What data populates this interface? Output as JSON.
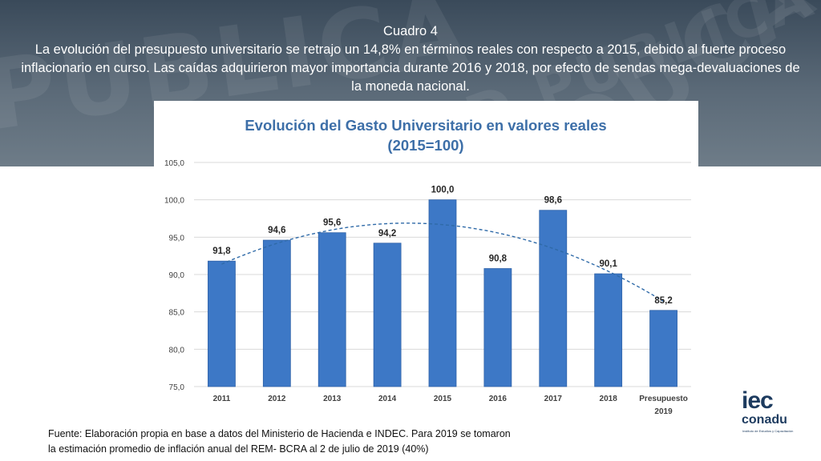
{
  "header": {
    "title": "Cuadro 4",
    "body": "La evolución del presupuesto universitario se retrajo un 14,8% en términos reales con respecto a 2015, debido al fuerte proceso inflacionario en curso. Las caídas adquirieron mayor importancia durante 2016 y 2018, por efecto de sendas mega-devaluaciones de la moneda nacional."
  },
  "banner_watermark": [
    "PUBLICA",
    "EDUCA",
    "UNIVERSIDAD PUBLICA"
  ],
  "chart_data": {
    "type": "bar",
    "title_line1": "Evolución del Gasto Universitario en valores reales",
    "title_line2": "(2015=100)",
    "categories": [
      "2011",
      "2012",
      "2013",
      "2014",
      "2015",
      "2016",
      "2017",
      "2018",
      "Presupuesto 2019"
    ],
    "category_labels": [
      [
        "2011"
      ],
      [
        "2012"
      ],
      [
        "2013"
      ],
      [
        "2014"
      ],
      [
        "2015"
      ],
      [
        "2016"
      ],
      [
        "2017"
      ],
      [
        "2018"
      ],
      [
        "Presupuesto",
        "2019"
      ]
    ],
    "values": [
      91.8,
      94.6,
      95.6,
      94.2,
      100.0,
      90.8,
      98.6,
      90.1,
      85.2
    ],
    "value_labels": [
      "91,8",
      "94,6",
      "95,6",
      "94,2",
      "100,0",
      "90,8",
      "98,6",
      "90,1",
      "85,2"
    ],
    "ylim": [
      75,
      105
    ],
    "yticks": [
      75,
      80,
      85,
      90,
      95,
      100,
      105
    ],
    "ytick_labels": [
      "75,0",
      "80,0",
      "85,0",
      "90,0",
      "95,0",
      "100,0",
      "105,0"
    ],
    "trendline": {
      "type": "polynomial",
      "style": "dashed"
    },
    "grid": true,
    "colors": {
      "bar": "#3d78c6",
      "bar_edge": "#2f62a8",
      "title": "#3d6fa8",
      "trend": "#2f6aa8",
      "grid": "#d9d9d9"
    }
  },
  "footnote": {
    "line1": "Fuente: Elaboración propia en base a datos del Ministerio de Hacienda e INDEC. Para 2019 se tomaron",
    "line2": "la estimación promedio de inflación anual  del REM- BCRA al 2 de julio  de 2019 (40%)"
  },
  "logo": {
    "top": "iec",
    "bottom": "conadu",
    "subtitle": "Instituto de Estudios y Capacitación"
  }
}
